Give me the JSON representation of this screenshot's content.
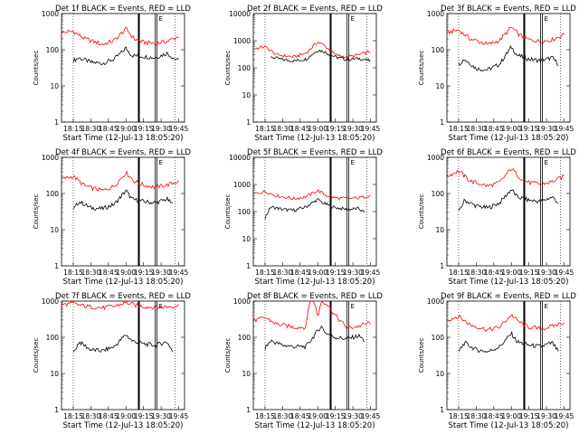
{
  "figure": {
    "colors": {
      "events": "#000000",
      "lld": "#ff0000",
      "axes": "#000000",
      "background": "#ffffff"
    },
    "shared_xlabel": "Start Time (12-Jul-13 18:05:20)",
    "shared_ylabel": "Counts/sec",
    "shared_xticks": [
      "18:15",
      "18:30",
      "18:45",
      "19:00",
      "19:15",
      "19:30",
      "19:45"
    ],
    "shared_yticks": [
      "1",
      "10",
      "100",
      "1000"
    ],
    "legend_marker": "E"
  },
  "chart_data": [
    {
      "type": "line",
      "title": "Det 1f BLACK = Events, RED = LLD",
      "xlabel": "Start Time (12-Jul-13 18:05:20)",
      "ylabel": "Counts/sec",
      "x_range_minutes_after_start": [
        0,
        105
      ],
      "ylim": [
        1,
        1000
      ],
      "y_scale": "log",
      "series": [
        {
          "name": "Events",
          "color": "#000000",
          "points": [
            [
              10,
              50
            ],
            [
              15,
              60
            ],
            [
              25,
              45
            ],
            [
              35,
              42
            ],
            [
              45,
              55
            ],
            [
              55,
              110
            ],
            [
              60,
              70
            ],
            [
              70,
              65
            ],
            [
              80,
              60
            ],
            [
              90,
              80
            ],
            [
              95,
              60
            ],
            [
              100,
              50
            ]
          ]
        },
        {
          "name": "LLD",
          "color": "#ff0000",
          "points": [
            [
              0,
              300
            ],
            [
              10,
              320
            ],
            [
              20,
              200
            ],
            [
              35,
              140
            ],
            [
              45,
              180
            ],
            [
              55,
              380
            ],
            [
              62,
              200
            ],
            [
              70,
              160
            ],
            [
              80,
              150
            ],
            [
              90,
              170
            ],
            [
              100,
              230
            ]
          ]
        }
      ]
    },
    {
      "type": "line",
      "title": "Det 2f BLACK = Events, RED = LLD",
      "xlabel": "Start Time (12-Jul-13 18:05:20)",
      "ylabel": "Counts/sec",
      "x_range_minutes_after_start": [
        0,
        105
      ],
      "ylim": [
        1,
        10000
      ],
      "y_scale": "log",
      "series": [
        {
          "name": "Events",
          "color": "#000000",
          "points": [
            [
              15,
              250
            ],
            [
              25,
              200
            ],
            [
              35,
              180
            ],
            [
              45,
              210
            ],
            [
              55,
              450
            ],
            [
              60,
              400
            ],
            [
              70,
              250
            ],
            [
              80,
              200
            ],
            [
              90,
              220
            ],
            [
              100,
              180
            ]
          ]
        },
        {
          "name": "LLD",
          "color": "#ff0000",
          "points": [
            [
              0,
              500
            ],
            [
              10,
              600
            ],
            [
              20,
              300
            ],
            [
              35,
              250
            ],
            [
              45,
              350
            ],
            [
              55,
              900
            ],
            [
              60,
              700
            ],
            [
              70,
              300
            ],
            [
              80,
              250
            ],
            [
              90,
              300
            ],
            [
              100,
              400
            ]
          ]
        }
      ]
    },
    {
      "type": "line",
      "title": "Det 3f BLACK = Events, RED = LLD",
      "xlabel": "Start Time (12-Jul-13 18:05:20)",
      "ylabel": "Counts/sec",
      "x_range_minutes_after_start": [
        0,
        105
      ],
      "ylim": [
        1,
        1000
      ],
      "y_scale": "log",
      "series": [
        {
          "name": "Events",
          "color": "#000000",
          "points": [
            [
              10,
              40
            ],
            [
              15,
              55
            ],
            [
              25,
              30
            ],
            [
              35,
              28
            ],
            [
              45,
              40
            ],
            [
              55,
              120
            ],
            [
              60,
              70
            ],
            [
              70,
              55
            ],
            [
              80,
              50
            ],
            [
              90,
              60
            ],
            [
              95,
              40
            ]
          ]
        },
        {
          "name": "LLD",
          "color": "#ff0000",
          "points": [
            [
              0,
              300
            ],
            [
              10,
              350
            ],
            [
              20,
              200
            ],
            [
              35,
              140
            ],
            [
              45,
              180
            ],
            [
              55,
              420
            ],
            [
              62,
              250
            ],
            [
              70,
              190
            ],
            [
              80,
              170
            ],
            [
              90,
              190
            ],
            [
              100,
              260
            ]
          ]
        }
      ]
    },
    {
      "type": "line",
      "title": "Det 4f BLACK = Events, RED = LLD",
      "xlabel": "Start Time (12-Jul-13 18:05:20)",
      "ylabel": "Counts/sec",
      "x_range_minutes_after_start": [
        0,
        105
      ],
      "ylim": [
        1,
        1000
      ],
      "y_scale": "log",
      "series": [
        {
          "name": "Events",
          "color": "#000000",
          "points": [
            [
              10,
              35
            ],
            [
              15,
              60
            ],
            [
              25,
              40
            ],
            [
              35,
              38
            ],
            [
              45,
              50
            ],
            [
              55,
              120
            ],
            [
              60,
              70
            ],
            [
              70,
              60
            ],
            [
              80,
              55
            ],
            [
              90,
              70
            ],
            [
              95,
              50
            ]
          ]
        },
        {
          "name": "LLD",
          "color": "#ff0000",
          "points": [
            [
              0,
              250
            ],
            [
              10,
              300
            ],
            [
              20,
              160
            ],
            [
              35,
              120
            ],
            [
              45,
              160
            ],
            [
              55,
              380
            ],
            [
              62,
              220
            ],
            [
              70,
              170
            ],
            [
              80,
              150
            ],
            [
              90,
              170
            ],
            [
              100,
              220
            ]
          ]
        }
      ]
    },
    {
      "type": "line",
      "title": "Det 5f BLACK = Events, RED = LLD",
      "xlabel": "Start Time (12-Jul-13 18:05:20)",
      "ylabel": "Counts/sec",
      "x_range_minutes_after_start": [
        0,
        105
      ],
      "ylim": [
        1,
        10000
      ],
      "y_scale": "log",
      "series": [
        {
          "name": "Events",
          "color": "#000000",
          "points": [
            [
              10,
              60
            ],
            [
              15,
              150
            ],
            [
              25,
              120
            ],
            [
              35,
              110
            ],
            [
              45,
              150
            ],
            [
              55,
              280
            ],
            [
              60,
              200
            ],
            [
              70,
              140
            ],
            [
              80,
              120
            ],
            [
              90,
              130
            ],
            [
              95,
              90
            ]
          ]
        },
        {
          "name": "LLD",
          "color": "#ff0000",
          "points": [
            [
              0,
              450
            ],
            [
              10,
              550
            ],
            [
              20,
              380
            ],
            [
              35,
              300
            ],
            [
              45,
              350
            ],
            [
              55,
              600
            ],
            [
              62,
              400
            ],
            [
              70,
              320
            ],
            [
              80,
              300
            ],
            [
              90,
              320
            ],
            [
              100,
              400
            ]
          ]
        }
      ]
    },
    {
      "type": "line",
      "title": "Det 6f BLACK = Events, RED = LLD",
      "xlabel": "Start Time (12-Jul-13 18:05:20)",
      "ylabel": "Counts/sec",
      "x_range_minutes_after_start": [
        0,
        105
      ],
      "ylim": [
        1,
        1000
      ],
      "y_scale": "log",
      "series": [
        {
          "name": "Events",
          "color": "#000000",
          "points": [
            [
              10,
              30
            ],
            [
              15,
              65
            ],
            [
              25,
              45
            ],
            [
              35,
              40
            ],
            [
              45,
              55
            ],
            [
              55,
              130
            ],
            [
              60,
              80
            ],
            [
              70,
              65
            ],
            [
              80,
              60
            ],
            [
              90,
              80
            ],
            [
              95,
              55
            ]
          ]
        },
        {
          "name": "LLD",
          "color": "#ff0000",
          "points": [
            [
              0,
              300
            ],
            [
              10,
              420
            ],
            [
              20,
              220
            ],
            [
              35,
              160
            ],
            [
              45,
              200
            ],
            [
              55,
              500
            ],
            [
              62,
              280
            ],
            [
              70,
              200
            ],
            [
              80,
              180
            ],
            [
              90,
              210
            ],
            [
              100,
              300
            ]
          ]
        }
      ]
    },
    {
      "type": "line",
      "title": "Det 7f BLACK = Events, RED = LLD",
      "xlabel": "Start Time (12-Jul-13 18:05:20)",
      "ylabel": "Counts/sec",
      "x_range_minutes_after_start": [
        0,
        105
      ],
      "ylim": [
        1,
        1000
      ],
      "y_scale": "log",
      "series": [
        {
          "name": "Events",
          "color": "#000000",
          "points": [
            [
              10,
              35
            ],
            [
              15,
              75
            ],
            [
              25,
              45
            ],
            [
              35,
              42
            ],
            [
              45,
              55
            ],
            [
              55,
              120
            ],
            [
              60,
              80
            ],
            [
              70,
              65
            ],
            [
              80,
              60
            ],
            [
              90,
              75
            ],
            [
              95,
              40
            ]
          ]
        },
        {
          "name": "LLD",
          "color": "#ff0000",
          "points": [
            [
              0,
              800
            ],
            [
              10,
              850
            ],
            [
              20,
              720
            ],
            [
              35,
              650
            ],
            [
              45,
              720
            ],
            [
              55,
              900
            ],
            [
              62,
              780
            ],
            [
              70,
              700
            ],
            [
              80,
              680
            ],
            [
              90,
              700
            ],
            [
              100,
              750
            ]
          ]
        }
      ]
    },
    {
      "type": "line",
      "title": "Det 8f BLACK = Events, RED = LLD",
      "xlabel": "Start Time (12-Jul-13 18:05:20)",
      "ylabel": "Counts/sec",
      "x_range_minutes_after_start": [
        0,
        105
      ],
      "ylim": [
        1,
        1000
      ],
      "y_scale": "log",
      "series": [
        {
          "name": "Events",
          "color": "#000000",
          "points": [
            [
              10,
              50
            ],
            [
              15,
              80
            ],
            [
              25,
              60
            ],
            [
              35,
              55
            ],
            [
              45,
              55
            ],
            [
              55,
              150
            ],
            [
              58,
              200
            ],
            [
              62,
              130
            ],
            [
              70,
              100
            ],
            [
              80,
              90
            ],
            [
              90,
              110
            ],
            [
              95,
              80
            ]
          ]
        },
        {
          "name": "LLD",
          "color": "#ff0000",
          "points": [
            [
              0,
              280
            ],
            [
              10,
              350
            ],
            [
              20,
              230
            ],
            [
              35,
              190
            ],
            [
              45,
              190
            ],
            [
              48,
              1000
            ],
            [
              52,
              1000
            ],
            [
              55,
              350
            ],
            [
              58,
              1000
            ],
            [
              62,
              900
            ],
            [
              70,
              400
            ],
            [
              80,
              180
            ],
            [
              90,
              200
            ],
            [
              100,
              260
            ]
          ]
        }
      ]
    },
    {
      "type": "line",
      "title": "Det 9f BLACK = Events, RED = LLD",
      "xlabel": "Start Time (12-Jul-13 18:05:20)",
      "ylabel": "Counts/sec",
      "x_range_minutes_after_start": [
        0,
        105
      ],
      "ylim": [
        1,
        1000
      ],
      "y_scale": "log",
      "series": [
        {
          "name": "Events",
          "color": "#000000",
          "points": [
            [
              10,
              40
            ],
            [
              15,
              70
            ],
            [
              25,
              45
            ],
            [
              35,
              40
            ],
            [
              45,
              55
            ],
            [
              55,
              125
            ],
            [
              60,
              75
            ],
            [
              70,
              60
            ],
            [
              80,
              55
            ],
            [
              90,
              70
            ],
            [
              95,
              40
            ]
          ]
        },
        {
          "name": "LLD",
          "color": "#ff0000",
          "points": [
            [
              0,
              300
            ],
            [
              10,
              380
            ],
            [
              20,
              220
            ],
            [
              35,
              160
            ],
            [
              45,
              190
            ],
            [
              55,
              420
            ],
            [
              62,
              260
            ],
            [
              70,
              190
            ],
            [
              80,
              170
            ],
            [
              90,
              200
            ],
            [
              100,
              260
            ]
          ]
        }
      ]
    }
  ]
}
